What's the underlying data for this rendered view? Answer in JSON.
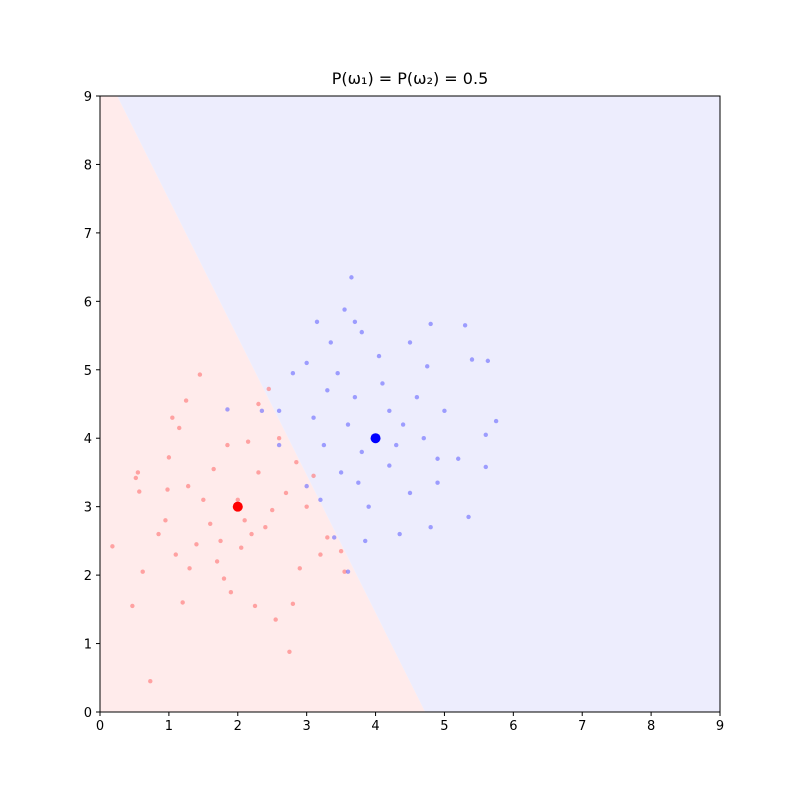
{
  "chart_data": {
    "type": "scatter",
    "title": "P(ω₁) = P(ω₂) = 0.5",
    "xlim": [
      0,
      9
    ],
    "ylim": [
      0,
      9
    ],
    "xticks": [
      0,
      1,
      2,
      3,
      4,
      5,
      6,
      7,
      8,
      9
    ],
    "yticks": [
      0,
      1,
      2,
      3,
      4,
      5,
      6,
      7,
      8,
      9
    ],
    "boundary": {
      "x": [
        0.25,
        4.72
      ],
      "y": [
        9,
        0
      ],
      "left_color": "#ffebeb",
      "right_color": "#ededfd"
    },
    "series": [
      {
        "color": "#ff7070",
        "size": 2.2,
        "opacity": 0.6,
        "x": [
          0.18,
          0.47,
          0.73,
          0.62,
          0.57,
          0.52,
          0.55,
          0.95,
          1.0,
          1.05,
          1.15,
          1.25,
          1.45,
          1.2,
          1.28,
          1.5,
          1.6,
          1.7,
          1.85,
          2.0,
          2.1,
          2.2,
          2.3,
          2.45,
          2.4,
          2.55,
          2.75,
          2.8,
          2.9,
          3.2,
          3.5,
          3.55,
          3.3,
          3.0,
          2.7,
          2.6,
          2.3,
          1.9,
          1.4,
          1.1,
          0.85,
          1.65,
          2.05,
          2.25,
          1.8,
          2.15,
          3.1,
          2.85,
          1.3,
          0.98,
          2.5,
          1.75
        ],
        "y": [
          2.42,
          1.55,
          0.45,
          2.05,
          3.22,
          3.42,
          3.5,
          2.8,
          3.72,
          4.3,
          4.15,
          4.55,
          4.93,
          1.6,
          3.3,
          3.1,
          2.75,
          2.2,
          3.9,
          3.1,
          2.8,
          2.6,
          3.5,
          4.72,
          2.7,
          1.35,
          0.88,
          1.58,
          2.1,
          2.3,
          2.35,
          2.05,
          2.55,
          3.0,
          3.2,
          4.0,
          4.5,
          1.75,
          2.45,
          2.3,
          2.6,
          3.55,
          2.4,
          1.55,
          1.95,
          3.95,
          3.45,
          3.65,
          2.1,
          3.25,
          2.95,
          2.5
        ]
      },
      {
        "color": "#6666ff",
        "size": 2.2,
        "opacity": 0.6,
        "x": [
          3.65,
          3.55,
          3.7,
          3.15,
          3.8,
          3.35,
          4.8,
          5.3,
          4.5,
          5.4,
          5.63,
          4.75,
          3.0,
          2.8,
          4.05,
          5.75,
          5.6,
          5.6,
          5.35,
          4.8,
          4.35,
          3.85,
          3.6,
          3.4,
          3.2,
          3.0,
          2.6,
          2.6,
          2.35,
          1.85,
          4.2,
          4.5,
          4.9,
          5.2,
          5.0,
          4.6,
          4.2,
          3.8,
          3.6,
          3.3,
          3.5,
          3.9,
          4.1,
          4.4,
          4.7,
          3.1,
          3.25,
          3.7,
          4.9,
          3.45,
          4.3,
          3.75
        ],
        "y": [
          6.35,
          5.88,
          5.7,
          5.7,
          5.55,
          5.4,
          5.67,
          5.65,
          5.4,
          5.15,
          5.13,
          5.05,
          5.1,
          4.95,
          5.2,
          4.25,
          4.05,
          3.58,
          2.85,
          2.7,
          2.6,
          2.5,
          2.05,
          2.55,
          3.1,
          3.3,
          3.9,
          4.4,
          4.4,
          4.42,
          3.6,
          3.2,
          3.35,
          3.7,
          4.4,
          4.6,
          4.4,
          3.8,
          4.2,
          4.7,
          3.5,
          3.0,
          4.8,
          4.2,
          4.0,
          4.3,
          3.9,
          4.6,
          3.7,
          4.95,
          3.9,
          3.35
        ]
      },
      {
        "color": "#ff0000",
        "size": 5,
        "opacity": 1,
        "x": [
          2
        ],
        "y": [
          3
        ]
      },
      {
        "color": "#0000ff",
        "size": 5,
        "opacity": 1,
        "x": [
          4
        ],
        "y": [
          4
        ]
      }
    ]
  }
}
